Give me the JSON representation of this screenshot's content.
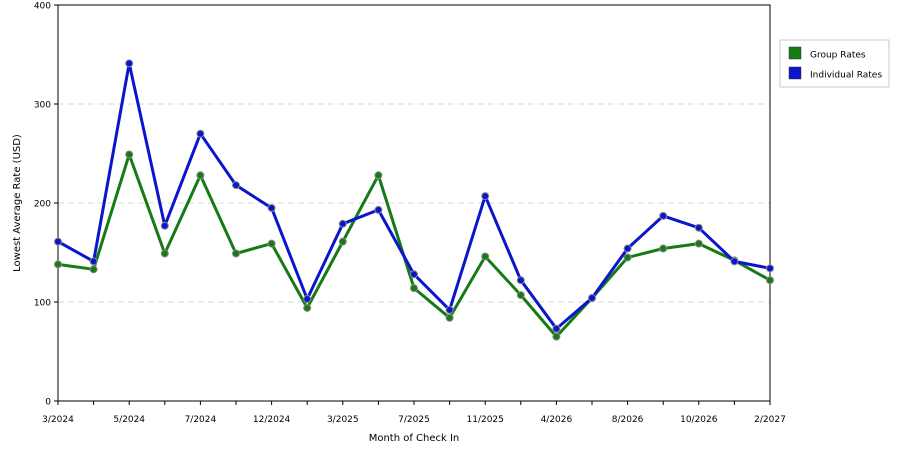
{
  "chart_data": {
    "type": "line",
    "title": "",
    "xlabel": "Month of Check In",
    "ylabel": "Lowest Average Rate (USD)",
    "ylim": [
      0,
      400
    ],
    "yticks": [
      0,
      100,
      200,
      300,
      400
    ],
    "grid": true,
    "legend_position": "right",
    "x_tick_labels": [
      {
        "index": 0,
        "label": "3/2024"
      },
      {
        "index": 2,
        "label": "5/2024"
      },
      {
        "index": 4,
        "label": "7/2024"
      },
      {
        "index": 6,
        "label": "12/2024"
      },
      {
        "index": 8,
        "label": "3/2025"
      },
      {
        "index": 10,
        "label": "7/2025"
      },
      {
        "index": 12,
        "label": "11/2025"
      },
      {
        "index": 14,
        "label": "4/2026"
      },
      {
        "index": 16,
        "label": "8/2026"
      },
      {
        "index": 18,
        "label": "10/2026"
      },
      {
        "index": 20,
        "label": "2/2027"
      }
    ],
    "series": [
      {
        "name": "Group Rates",
        "color": "#167a16",
        "values": [
          138,
          133,
          249,
          149,
          228,
          149,
          159,
          94,
          161,
          228,
          114,
          84,
          146,
          107,
          65,
          104,
          145,
          154,
          159,
          142,
          122
        ]
      },
      {
        "name": "Individual Rates",
        "color": "#0b16cc",
        "values": [
          161,
          141,
          341,
          177,
          270,
          218,
          195,
          103,
          179,
          193,
          128,
          92,
          207,
          122,
          73,
          104,
          154,
          187,
          175,
          141,
          134
        ]
      }
    ]
  }
}
